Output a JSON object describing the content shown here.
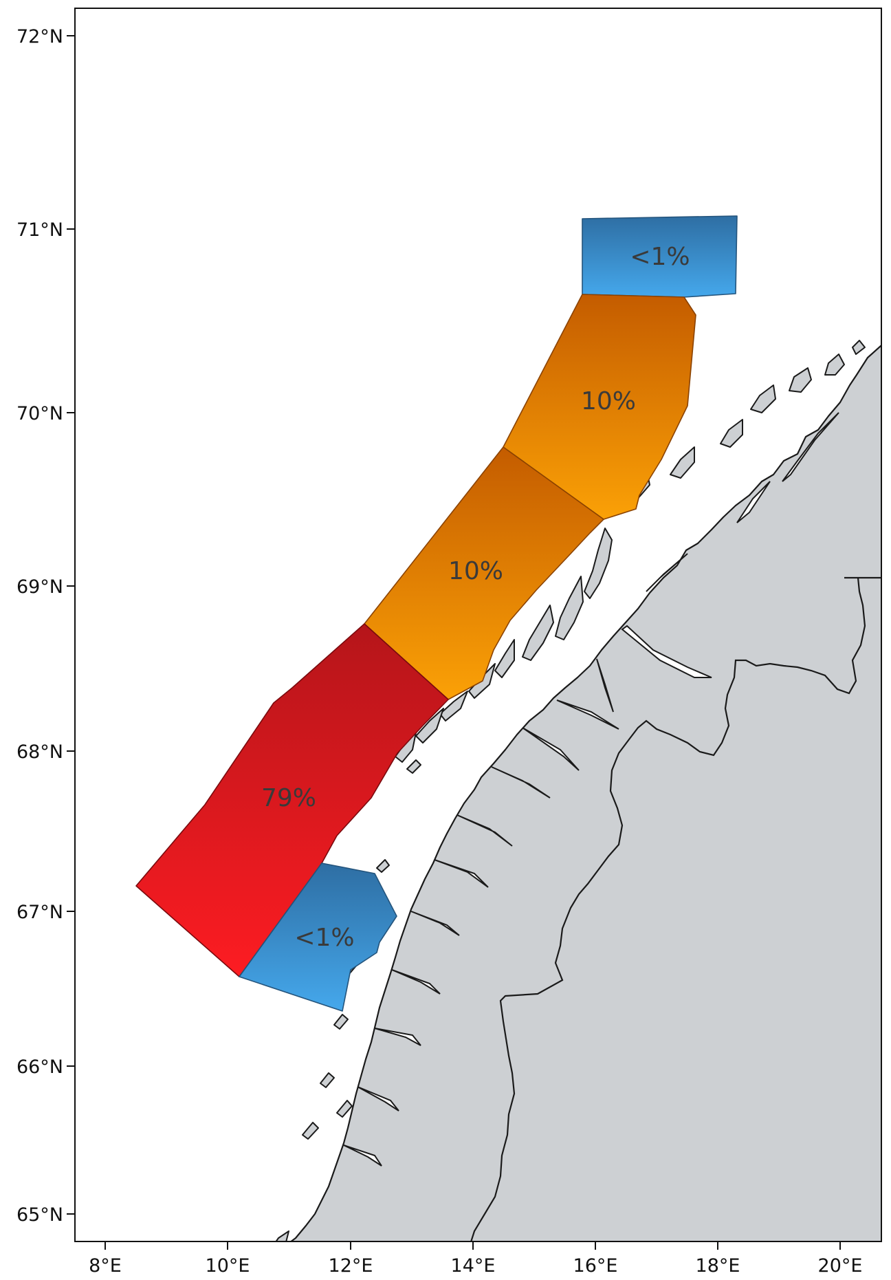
{
  "map": {
    "latitude_ticks": [
      {
        "id": "72",
        "label": "72°N"
      },
      {
        "id": "71",
        "label": "71°N"
      },
      {
        "id": "70",
        "label": "70°N"
      },
      {
        "id": "69",
        "label": "69°N"
      },
      {
        "id": "68",
        "label": "68°N"
      },
      {
        "id": "67",
        "label": "67°N"
      },
      {
        "id": "66",
        "label": "66°N"
      },
      {
        "id": "65",
        "label": "65°N"
      }
    ],
    "longitude_ticks": [
      {
        "id": "8",
        "label": "8°E"
      },
      {
        "id": "10",
        "label": "10°E"
      },
      {
        "id": "12",
        "label": "12°E"
      },
      {
        "id": "14",
        "label": "14°E"
      },
      {
        "id": "16",
        "label": "16°E"
      },
      {
        "id": "18",
        "label": "18°E"
      },
      {
        "id": "20",
        "label": "20°E"
      }
    ],
    "zones": [
      {
        "id": "north-blue",
        "label": "<1%",
        "share_text": "<1%",
        "color_top": "#2e6ea3",
        "color_bottom": "#45a8ec"
      },
      {
        "id": "north-orange",
        "label": "10%",
        "color_top": "#c45c00",
        "color_bottom": "#fba106"
      },
      {
        "id": "middle-orange",
        "label": "10%",
        "color_top": "#c45c00",
        "color_bottom": "#fba106"
      },
      {
        "id": "red",
        "label": "79%",
        "color_top": "#b5151a",
        "color_bottom": "#fd1c22"
      },
      {
        "id": "south-blue",
        "label": "<1%",
        "color_top": "#2e6ea3",
        "color_bottom": "#45a8ec"
      }
    ],
    "colors": {
      "land": "#cdd0d3",
      "coastline": "#1a1a1a",
      "sea": "#ffffff"
    }
  }
}
